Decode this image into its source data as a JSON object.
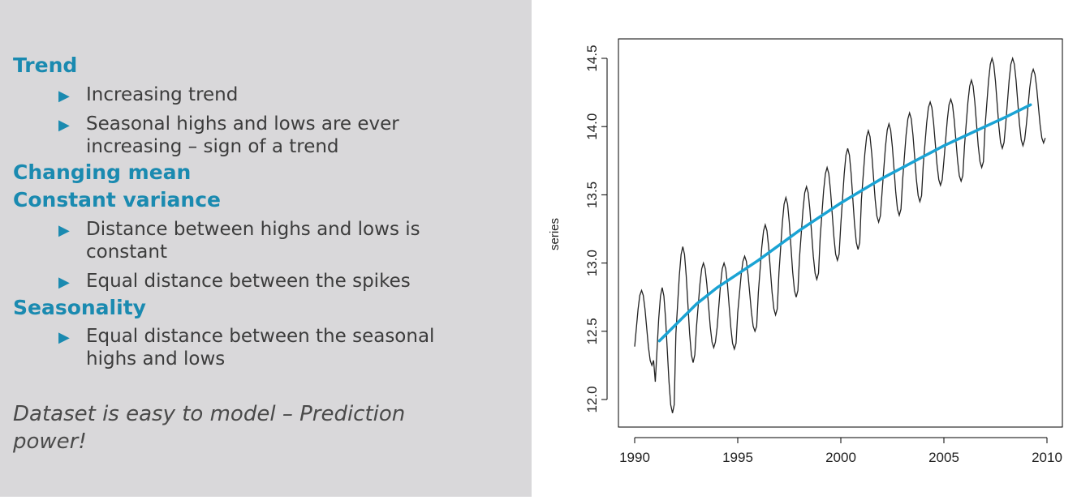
{
  "slide": {
    "sections": [
      {
        "heading": "Trend",
        "bullets": [
          "Increasing trend",
          "Seasonal highs and lows are ever increasing – sign of a trend"
        ]
      },
      {
        "heading": "Changing mean",
        "bullets": []
      },
      {
        "heading": "Constant variance",
        "bullets": [
          "Distance between highs and lows is constant",
          "Equal distance between the spikes"
        ]
      },
      {
        "heading": "Seasonality",
        "bullets": [
          "Equal distance between the seasonal highs and lows"
        ]
      }
    ],
    "conclusion": "Dataset is easy to model – Prediction power!",
    "colors": {
      "heading": "#1a8ab0",
      "bullet_marker": "#1a8ab0",
      "panel_background": "#d9d8da",
      "series_line": "#222222",
      "trend_line": "#1aa3d4"
    },
    "bullet_icon": "triangle-right-icon"
  },
  "chart_data": {
    "type": "line",
    "title": "",
    "xlabel": "",
    "ylabel": "series",
    "xlim": [
      1990,
      2010
    ],
    "ylim": [
      11.8,
      14.6
    ],
    "x_ticks": [
      "1990",
      "1995",
      "2000",
      "2005",
      "2010"
    ],
    "y_ticks": [
      "12.0",
      "12.5",
      "13.0",
      "13.5",
      "14.0",
      "14.5"
    ],
    "grid": false,
    "legend": "none",
    "series": [
      {
        "kind": "monthly-seasonal",
        "start_year": 1990,
        "yearly_peaks": [
          12.8,
          12.82,
          13.12,
          13.0,
          13.0,
          13.05,
          13.28,
          13.48,
          13.56,
          13.7,
          13.84,
          13.97,
          14.02,
          14.1,
          14.18,
          14.2,
          14.34,
          14.5,
          14.5,
          14.42
        ],
        "yearly_troughs": [
          12.25,
          11.9,
          12.27,
          12.38,
          12.37,
          12.5,
          12.62,
          12.75,
          12.88,
          13.02,
          13.1,
          13.3,
          13.35,
          13.45,
          13.57,
          13.6,
          13.7,
          13.84,
          13.86,
          13.88
        ]
      },
      {
        "kind": "trend",
        "x": [
          1991.2,
          1992,
          1993,
          1994,
          1995,
          1996,
          1997,
          1998,
          1999,
          2000,
          2001,
          2002,
          2003,
          2004,
          2005,
          2006,
          2007,
          2008,
          2009.2
        ],
        "values": [
          12.43,
          12.55,
          12.7,
          12.82,
          12.92,
          13.02,
          13.13,
          13.24,
          13.34,
          13.44,
          13.53,
          13.62,
          13.7,
          13.78,
          13.86,
          13.93,
          14.0,
          14.07,
          14.16
        ]
      }
    ]
  }
}
